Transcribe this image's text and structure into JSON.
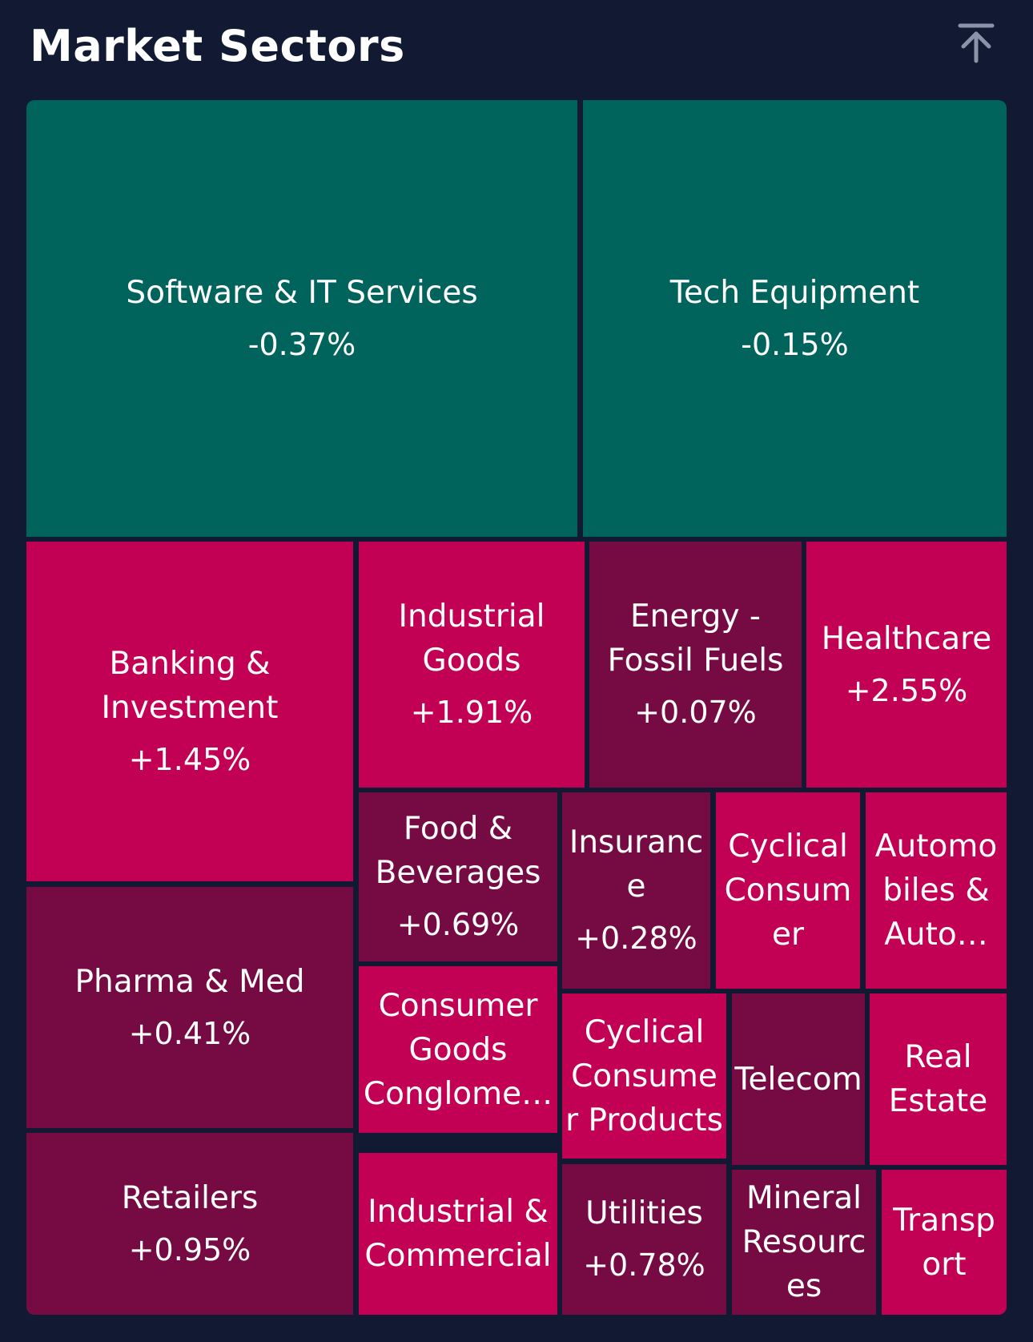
{
  "header": {
    "title": "Market Sectors",
    "scroll_icon": "arrow-up-to-top-icon"
  },
  "colors": {
    "background": "#121a33",
    "negative": "#00635c",
    "strong_positive": "#c20054",
    "mild_positive": "#760b44"
  },
  "chart_data": {
    "type": "treemap",
    "title": "Market Sectors",
    "tiles": [
      {
        "id": "software-it-services",
        "name": "Software & IT Services",
        "change": "-0.37%",
        "value": -0.37,
        "color": "#00635c"
      },
      {
        "id": "tech-equipment",
        "name": "Tech Equipment",
        "change": "-0.15%",
        "value": -0.15,
        "color": "#00635c"
      },
      {
        "id": "banking-investment",
        "name": "Banking & Investment",
        "change": "+1.45%",
        "value": 1.45,
        "color": "#c20054"
      },
      {
        "id": "industrial-goods",
        "name": "Industrial Goods",
        "change": "+1.91%",
        "value": 1.91,
        "color": "#c20054"
      },
      {
        "id": "energy-fossil-fuels",
        "name": "Energy - Fossil Fuels",
        "change": "+0.07%",
        "value": 0.07,
        "color": "#760b44"
      },
      {
        "id": "healthcare",
        "name": "Healthcare",
        "change": "+2.55%",
        "value": 2.55,
        "color": "#c20054"
      },
      {
        "id": "food-beverages",
        "name": "Food & Beverages",
        "change": "+0.69%",
        "value": 0.69,
        "color": "#760b44"
      },
      {
        "id": "insurance",
        "name": "Insurance",
        "change": "+0.28%",
        "value": 0.28,
        "color": "#760b44"
      },
      {
        "id": "cyclical-consumer",
        "name": "Cyclical Consumer",
        "change": "",
        "color": "#c20054"
      },
      {
        "id": "automobiles-auto",
        "name": "Automobiles & Auto…",
        "change": "",
        "color": "#c20054"
      },
      {
        "id": "pharma-med",
        "name": "Pharma & Med",
        "change": "+0.41%",
        "value": 0.41,
        "color": "#760b44"
      },
      {
        "id": "consumer-goods-conglomerates",
        "name": "Consumer Goods Conglome…",
        "change": "",
        "color": "#c20054"
      },
      {
        "id": "cyclical-consumer-products",
        "name": "Cyclical Consumer Products",
        "change": "",
        "color": "#c20054"
      },
      {
        "id": "telecom",
        "name": "Telecom",
        "change": "",
        "color": "#760b44"
      },
      {
        "id": "real-estate",
        "name": "Real Estate",
        "change": "",
        "color": "#c20054"
      },
      {
        "id": "retailers",
        "name": "Retailers",
        "change": "+0.95%",
        "value": 0.95,
        "color": "#760b44"
      },
      {
        "id": "industrial-commercial",
        "name": "Industrial & Commercial",
        "change": "",
        "color": "#c20054"
      },
      {
        "id": "utilities",
        "name": "Utilities",
        "change": "+0.78%",
        "value": 0.78,
        "color": "#760b44"
      },
      {
        "id": "mineral-resources",
        "name": "Mineral Resources",
        "change": "",
        "color": "#760b44"
      },
      {
        "id": "transport",
        "name": "Transport",
        "change": "",
        "color": "#c20054"
      }
    ]
  }
}
